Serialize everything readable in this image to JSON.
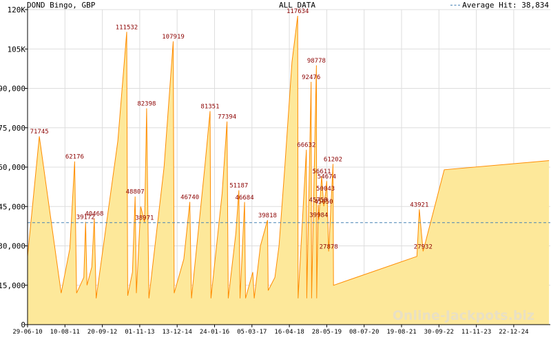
{
  "header": {
    "title": "DOND Bingo, GBP",
    "center_title": "ALL DATA",
    "legend_label": "Average Hit: 38,834"
  },
  "watermark": "Online-Jackpots.biz",
  "colors": {
    "area_fill": "#fde89a",
    "line": "#ff8c00",
    "average_line": "#4682b4",
    "grid": "#dddddd",
    "peak_label": "#8b0000"
  },
  "chart_data": {
    "type": "area",
    "title": "DOND Bingo, GBP",
    "subtitle": "ALL DATA",
    "xlabel": "",
    "ylabel": "",
    "ylim": [
      0,
      120000
    ],
    "grid": true,
    "legend_position": "top-right",
    "y_ticks": [
      "0",
      "15,000",
      "30,000",
      "45,000",
      "60,000",
      "75,000",
      "90,000",
      "105K",
      "120K"
    ],
    "x_ticks": [
      "29-06-10",
      "10-08-11",
      "20-09-12",
      "01-11-13",
      "13-12-14",
      "24-01-16",
      "05-03-17",
      "16-04-18",
      "28-05-19",
      "08-07-20",
      "19-08-21",
      "30-09-22",
      "11-11-23",
      "22-12-24"
    ],
    "average": {
      "name": "Average Hit",
      "value": 38834
    },
    "series": [
      {
        "points": [
          [
            "2010-06-29",
            26000
          ],
          [
            "2010-11-01",
            71745
          ],
          [
            "2011-06-20",
            12000
          ],
          [
            "2011-09-20",
            29000
          ],
          [
            "2011-11-10",
            62176
          ],
          [
            "2011-12-01",
            12000
          ],
          [
            "2012-02-15",
            18000
          ],
          [
            "2012-03-05",
            39172
          ],
          [
            "2012-03-20",
            15000
          ],
          [
            "2012-05-10",
            22000
          ],
          [
            "2012-06-05",
            40468
          ],
          [
            "2012-06-25",
            10000
          ],
          [
            "2013-02-10",
            70000
          ],
          [
            "2013-05-15",
            111532
          ],
          [
            "2013-05-25",
            11000
          ],
          [
            "2013-07-15",
            20000
          ],
          [
            "2013-08-12",
            48807
          ],
          [
            "2013-08-25",
            12000
          ],
          [
            "2013-10-10",
            45000
          ],
          [
            "2013-11-20",
            38971
          ],
          [
            "2013-12-12",
            82398
          ],
          [
            "2014-01-05",
            10000
          ],
          [
            "2014-06-15",
            60000
          ],
          [
            "2014-09-20",
            107919
          ],
          [
            "2014-09-30",
            12000
          ],
          [
            "2015-01-10",
            25000
          ],
          [
            "2015-03-15",
            46740
          ],
          [
            "2015-04-01",
            10000
          ],
          [
            "2015-08-20",
            60000
          ],
          [
            "2015-10-15",
            81351
          ],
          [
            "2015-10-25",
            10000
          ],
          [
            "2016-02-20",
            50000
          ],
          [
            "2016-04-12",
            77394
          ],
          [
            "2016-04-25",
            10000
          ],
          [
            "2016-07-15",
            35000
          ],
          [
            "2016-08-15",
            51187
          ],
          [
            "2016-08-28",
            10000
          ],
          [
            "2016-10-15",
            46684
          ],
          [
            "2016-10-25",
            10000
          ],
          [
            "2017-01-10",
            20000
          ],
          [
            "2017-01-25",
            10000
          ],
          [
            "2017-04-01",
            30000
          ],
          [
            "2017-06-15",
            39818
          ],
          [
            "2017-06-22",
            13000
          ],
          [
            "2017-09-01",
            18000
          ],
          [
            "2017-10-15",
            30000
          ],
          [
            "2017-12-15",
            60000
          ],
          [
            "2018-03-01",
            100000
          ],
          [
            "2018-05-01",
            117634
          ],
          [
            "2018-05-05",
            10000
          ],
          [
            "2018-08-01",
            66632
          ],
          [
            "2018-08-05",
            10000
          ],
          [
            "2018-09-20",
            92476
          ],
          [
            "2018-09-25",
            10000
          ],
          [
            "2018-11-15",
            98778
          ],
          [
            "2018-11-18",
            10000
          ],
          [
            "2018-12-05",
            45758
          ],
          [
            "2018-12-10",
            39984
          ],
          [
            "2019-01-10",
            56611
          ],
          [
            "2019-02-01",
            45050
          ],
          [
            "2019-02-20",
            50043
          ],
          [
            "2019-03-05",
            54674
          ],
          [
            "2019-03-25",
            27878
          ],
          [
            "2019-05-10",
            61202
          ],
          [
            "2019-05-15",
            15000
          ],
          [
            "2021-10-15",
            26000
          ],
          [
            "2021-11-10",
            43921
          ],
          [
            "2021-12-20",
            27932
          ],
          [
            "2022-08-01",
            59000
          ],
          [
            "2025-08-15",
            62500
          ]
        ]
      }
    ],
    "annotations": [
      {
        "x": "2010-11-01",
        "y": 71745,
        "text": "71745"
      },
      {
        "x": "2011-11-10",
        "y": 62176,
        "text": "62176"
      },
      {
        "x": "2012-03-05",
        "y": 39172,
        "text": "39172"
      },
      {
        "x": "2012-06-05",
        "y": 40468,
        "text": "40468"
      },
      {
        "x": "2013-05-15",
        "y": 111532,
        "text": "111532"
      },
      {
        "x": "2013-08-12",
        "y": 48807,
        "text": "48807"
      },
      {
        "x": "2013-11-20",
        "y": 38971,
        "text": "38971"
      },
      {
        "x": "2013-12-12",
        "y": 82398,
        "text": "82398"
      },
      {
        "x": "2014-09-20",
        "y": 107919,
        "text": "107919"
      },
      {
        "x": "2015-03-15",
        "y": 46740,
        "text": "46740"
      },
      {
        "x": "2015-10-15",
        "y": 81351,
        "text": "81351"
      },
      {
        "x": "2016-04-12",
        "y": 77394,
        "text": "77394"
      },
      {
        "x": "2016-08-15",
        "y": 51187,
        "text": "51187"
      },
      {
        "x": "2016-10-15",
        "y": 46684,
        "text": "46684"
      },
      {
        "x": "2017-06-15",
        "y": 39818,
        "text": "39818"
      },
      {
        "x": "2018-05-01",
        "y": 117634,
        "text": "117634"
      },
      {
        "x": "2018-08-01",
        "y": 66632,
        "text": "66632"
      },
      {
        "x": "2018-09-20",
        "y": 92476,
        "text": "92476"
      },
      {
        "x": "2018-11-15",
        "y": 98778,
        "text": "98778"
      },
      {
        "x": "2018-12-05",
        "y": 45758,
        "text": "45758"
      },
      {
        "x": "2018-12-10",
        "y": 39984,
        "text": "39984"
      },
      {
        "x": "2019-01-10",
        "y": 56611,
        "text": "56611"
      },
      {
        "x": "2019-02-01",
        "y": 45050,
        "text": "45050"
      },
      {
        "x": "2019-02-20",
        "y": 50043,
        "text": "50043"
      },
      {
        "x": "2019-03-05",
        "y": 54674,
        "text": "54674"
      },
      {
        "x": "2019-03-25",
        "y": 27878,
        "text": "27878"
      },
      {
        "x": "2019-05-10",
        "y": 61202,
        "text": "61202"
      },
      {
        "x": "2021-11-10",
        "y": 43921,
        "text": "43921"
      },
      {
        "x": "2021-12-20",
        "y": 27932,
        "text": "27932"
      }
    ]
  }
}
